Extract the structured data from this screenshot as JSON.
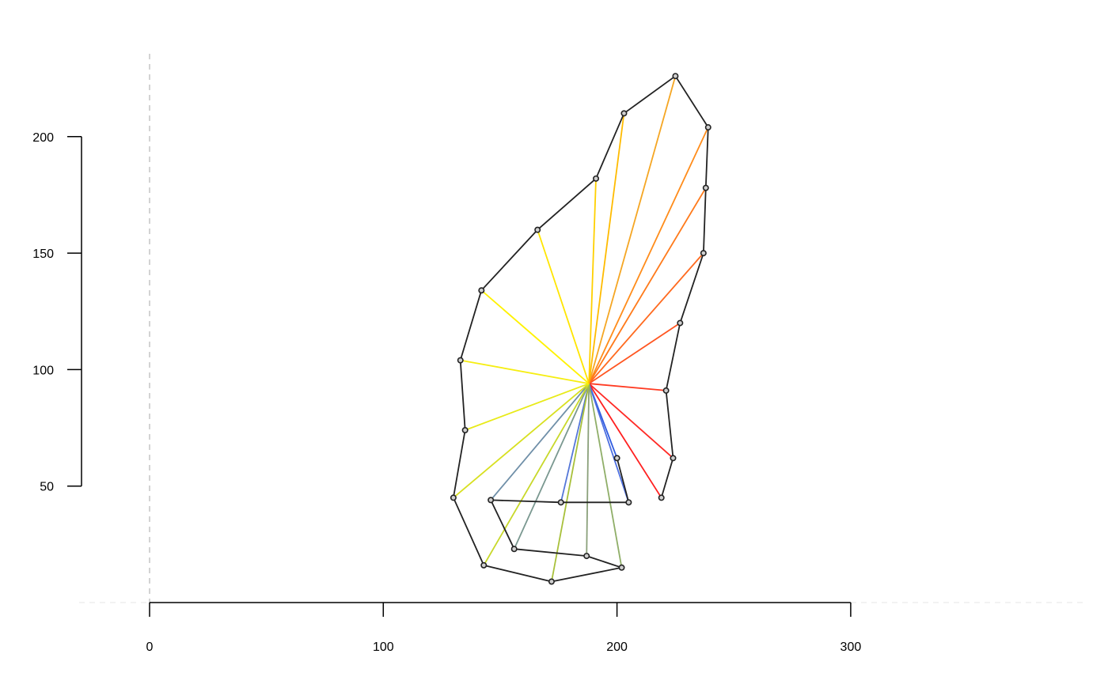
{
  "chart_data": {
    "type": "scatter",
    "title": "",
    "xlabel": "",
    "ylabel": "",
    "xlim": [
      -30,
      400
    ],
    "ylim": [
      0,
      235
    ],
    "x_axis": {
      "range": [
        0,
        300
      ],
      "ticks": [
        0,
        100,
        200,
        300
      ],
      "tick_labels": [
        "0",
        "100",
        "200",
        "300"
      ]
    },
    "y_axis": {
      "range": [
        50,
        200
      ],
      "ticks": [
        50,
        100,
        150,
        200
      ],
      "tick_labels": [
        "50",
        "100",
        "150",
        "200"
      ]
    },
    "grid": false,
    "reference_lines": [
      {
        "orientation": "vertical",
        "value": 0,
        "style": "dashed",
        "color": "#c8c8c8"
      },
      {
        "orientation": "horizontal",
        "value": 0,
        "style": "dashed",
        "color": "#e6e6e6"
      }
    ],
    "center": {
      "x": 188,
      "y": 94
    },
    "points": [
      {
        "x": 225,
        "y": 226,
        "color": "#f5a623"
      },
      {
        "x": 239,
        "y": 204,
        "color": "#ff8c1a"
      },
      {
        "x": 238,
        "y": 178,
        "color": "#ff7a1a"
      },
      {
        "x": 237,
        "y": 150,
        "color": "#ff6a1f"
      },
      {
        "x": 227,
        "y": 120,
        "color": "#ff5520"
      },
      {
        "x": 221,
        "y": 91,
        "color": "#ff3b22"
      },
      {
        "x": 224,
        "y": 62,
        "color": "#ff2a25"
      },
      {
        "x": 219,
        "y": 45,
        "color": "#ff1f1f"
      },
      {
        "x": 200,
        "y": 62,
        "color": "#2f5be0"
      },
      {
        "x": 205,
        "y": 43,
        "color": "#4d6fe0"
      },
      {
        "x": 176,
        "y": 43,
        "color": "#5577d8"
      },
      {
        "x": 146,
        "y": 44,
        "color": "#6f8fa8"
      },
      {
        "x": 156,
        "y": 23,
        "color": "#7a9890"
      },
      {
        "x": 187,
        "y": 20,
        "color": "#8aa07a"
      },
      {
        "x": 202,
        "y": 15,
        "color": "#8fae68"
      },
      {
        "x": 172,
        "y": 9,
        "color": "#a8c03a"
      },
      {
        "x": 143,
        "y": 16,
        "color": "#c8d82a"
      },
      {
        "x": 130,
        "y": 45,
        "color": "#d8e020"
      },
      {
        "x": 135,
        "y": 74,
        "color": "#e8ea18"
      },
      {
        "x": 133,
        "y": 104,
        "color": "#f6ee12"
      },
      {
        "x": 142,
        "y": 134,
        "color": "#fff200"
      },
      {
        "x": 166,
        "y": 160,
        "color": "#ffe500"
      },
      {
        "x": 191,
        "y": 182,
        "color": "#ffd000"
      },
      {
        "x": 203,
        "y": 210,
        "color": "#ffbb00"
      }
    ],
    "hull_paths": [
      [
        0,
        1,
        2,
        3,
        4,
        5,
        6,
        7
      ],
      [
        8,
        9
      ],
      [
        9,
        10,
        11,
        12,
        13,
        14,
        15,
        16,
        17,
        18,
        19,
        20,
        21,
        22,
        23,
        0
      ]
    ],
    "point_fill": "#cfcfcf",
    "outline_color": "#222222"
  }
}
